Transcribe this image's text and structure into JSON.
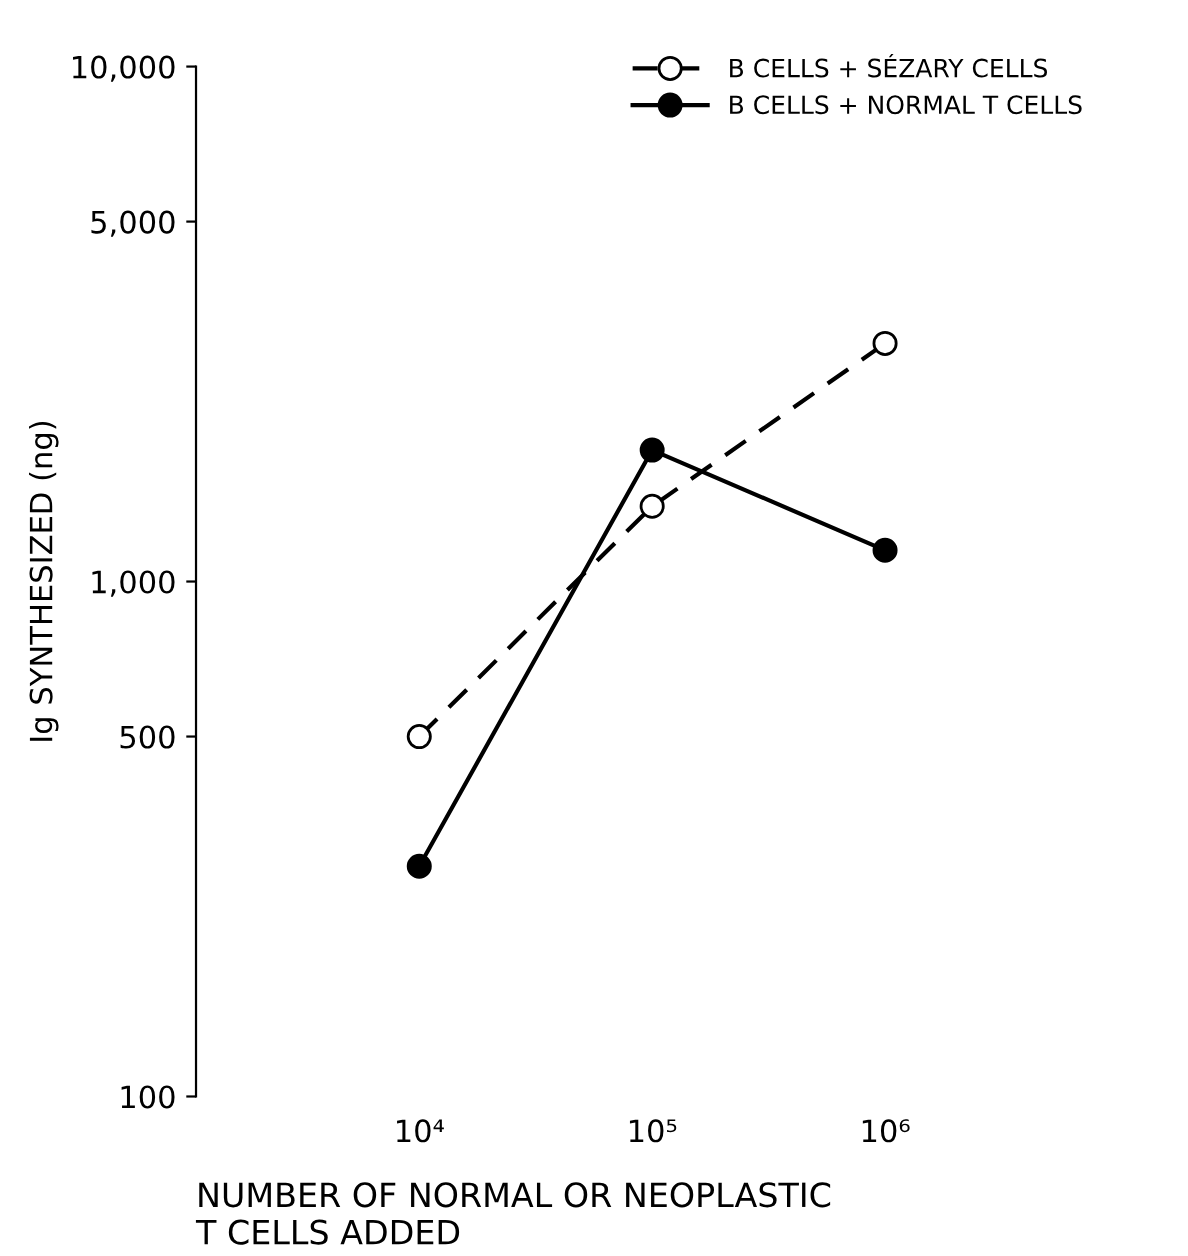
{
  "chart_data": {
    "type": "line",
    "xlabel": "NUMBER OF NORMAL OR NEOPLASTIC\nT CELLS ADDED",
    "ylabel": "Ig SYNTHESIZED (ng)",
    "log": "xy",
    "x": [
      10000,
      100000,
      1000000
    ],
    "series": [
      {
        "name": "B CELLS + SÉZARY CELLS",
        "color": "#000000",
        "line_style": "dashed",
        "values": [
          500,
          1400,
          2900
        ]
      },
      {
        "name": "B CELLS + NORMAL T CELLS",
        "color": "#000000",
        "line_style": "solid",
        "values": [
          280,
          1800,
          1150
        ]
      }
    ],
    "marker": "circle",
    "xlim": [
      1100,
      1000000
    ],
    "ylim": [
      100,
      10000
    ],
    "xticks": [
      {
        "value": 10000,
        "label": "10⁴"
      },
      {
        "value": 100000,
        "label": "10⁵"
      },
      {
        "value": 1000000,
        "label": "10⁶"
      }
    ],
    "yticks": [
      100,
      {
        "value": 500,
        "label": "500"
      },
      {
        "value": 1000,
        "label": "1,000"
      },
      {
        "value": 5000,
        "label": "5,000"
      },
      {
        "value": 10000,
        "label": "10,000"
      }
    ],
    "grid": false,
    "legend": "top right"
  }
}
